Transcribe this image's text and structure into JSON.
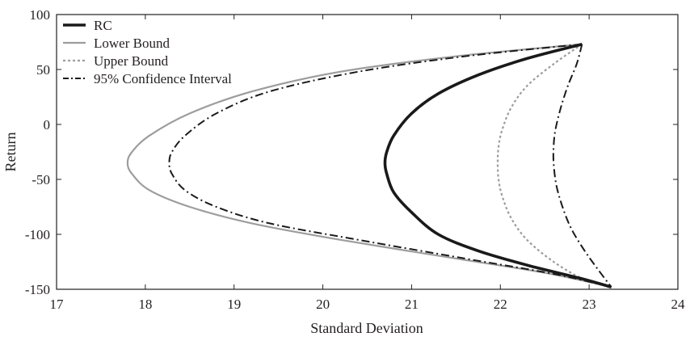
{
  "chart_data": {
    "type": "line",
    "title": "",
    "xlabel": "Standard Deviation",
    "ylabel": "Return",
    "xlim": [
      17,
      24
    ],
    "ylim": [
      -150,
      100
    ],
    "xticks": [
      17,
      18,
      19,
      20,
      21,
      22,
      23,
      24
    ],
    "yticks": [
      100,
      50,
      0,
      -50,
      -100,
      -150
    ],
    "xtick_labels": [
      "17",
      "18",
      "19",
      "20",
      "21",
      "22",
      "23",
      "24"
    ],
    "ytick_labels": [
      "100",
      "50",
      "0",
      "-50",
      "-100",
      "-150"
    ],
    "grid": false,
    "legend_position": "top-left",
    "series": [
      {
        "name": "RC",
        "color": "#1a1a1a",
        "style": "solid-thick",
        "x": [
          22.92,
          22.3,
          21.75,
          21.3,
          21.0,
          20.8,
          20.72,
          20.7,
          20.72,
          20.8,
          21.0,
          21.3,
          21.75,
          22.3,
          22.9,
          23.25
        ],
        "y": [
          73,
          60,
          45,
          28,
          10,
          -10,
          -25,
          -35,
          -45,
          -62,
          -80,
          -100,
          -115,
          -128,
          -140,
          -148
        ]
      },
      {
        "name": "Lower Bound",
        "color": "#9d9d9d",
        "style": "solid",
        "x": [
          22.92,
          21.5,
          20.2,
          19.2,
          18.5,
          18.05,
          17.85,
          17.8,
          17.85,
          18.05,
          18.5,
          19.2,
          20.2,
          21.5,
          22.5,
          23.25
        ],
        "y": [
          73,
          62,
          48,
          30,
          10,
          -10,
          -25,
          -35,
          -45,
          -60,
          -75,
          -90,
          -105,
          -122,
          -135,
          -148
        ]
      },
      {
        "name": "Upper Bound",
        "color": "#9d9d9d",
        "style": "dotted",
        "x": [
          22.92,
          22.6,
          22.3,
          22.12,
          22.02,
          21.98,
          21.97,
          21.98,
          22.02,
          22.12,
          22.3,
          22.6,
          22.92,
          23.25
        ],
        "y": [
          73,
          55,
          35,
          15,
          -5,
          -20,
          -35,
          -50,
          -65,
          -85,
          -105,
          -125,
          -140,
          -148
        ]
      },
      {
        "name": "95% Confidence Interval",
        "color": "#1a1a1a",
        "style": "dash-dot",
        "x": [
          22.92,
          21.6,
          20.4,
          19.4,
          18.8,
          18.45,
          18.3,
          18.27,
          18.3,
          18.45,
          18.8,
          19.4,
          20.4,
          21.6,
          22.6,
          23.25
        ],
        "y": [
          73,
          62,
          48,
          30,
          10,
          -10,
          -25,
          -35,
          -45,
          -60,
          -75,
          -90,
          -105,
          -122,
          -136,
          -148
        ]
      },
      {
        "name": "",
        "color": "#1a1a1a",
        "style": "dash-dot",
        "x": [
          22.92,
          22.86,
          22.76,
          22.68,
          22.62,
          22.6,
          22.6,
          22.63,
          22.7,
          22.8,
          22.95,
          23.1,
          23.25
        ],
        "y": [
          73,
          55,
          35,
          15,
          -5,
          -20,
          -35,
          -55,
          -75,
          -95,
          -115,
          -132,
          -148
        ]
      }
    ]
  }
}
